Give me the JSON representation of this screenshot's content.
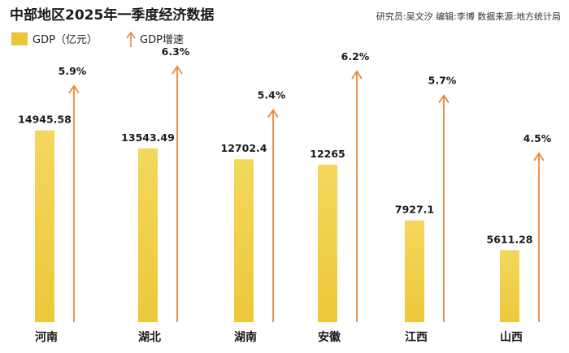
{
  "header": {
    "title": "中部地区2025年一季度经济数据",
    "credits": "研究员:吴文汐   编辑:李博   数据来源:地方统计局"
  },
  "legend": {
    "gdp_label": "GDP（亿元）",
    "growth_label": "GDP增速"
  },
  "colors": {
    "bar": "#ecc93e",
    "bar_light": "#f6dc6e",
    "arrow": "#e8893a",
    "legend_box": "#e9c53c"
  },
  "chart_data": {
    "type": "bar",
    "title": "中部地区2025年一季度经济数据",
    "categories": [
      "河南",
      "湖北",
      "湖南",
      "安徽",
      "江西",
      "山西"
    ],
    "series": [
      {
        "name": "GDP（亿元）",
        "values": [
          14945.58,
          13543.49,
          12702.4,
          12265,
          7927.1,
          5611.28
        ],
        "labels": [
          "14945.58",
          "13543.49",
          "12702.4",
          "12265",
          "7927.1",
          "5611.28"
        ]
      },
      {
        "name": "GDP增速",
        "values": [
          5.9,
          6.3,
          5.4,
          6.2,
          5.7,
          4.5
        ],
        "labels": [
          "5.9%",
          "6.3%",
          "5.4%",
          "6.2%",
          "5.7%",
          "4.5%"
        ]
      }
    ],
    "xlabel": "",
    "ylabel": "",
    "gdp_range": [
      0,
      16000
    ],
    "growth_range": [
      0,
      6.3
    ],
    "grid": false,
    "legend_position": "top-left"
  }
}
